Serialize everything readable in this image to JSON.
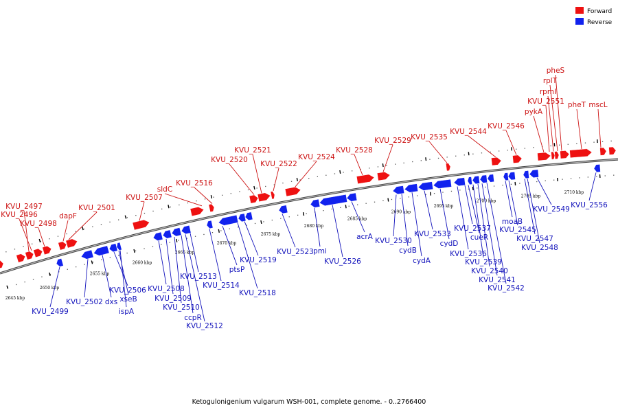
{
  "caption": "Ketogulonigenium vulgarum WSH-001, complete genome. - 0..2766400",
  "legend": {
    "forward": {
      "label": "Forward",
      "color": "#ee1111"
    },
    "reverse": {
      "label": "Reverse",
      "color": "#1122ee"
    }
  },
  "colors": {
    "forward_label": "#cc1111",
    "reverse_label": "#1111bb",
    "backbone": "#777777"
  },
  "kbp_ticks": [
    "2645 kbp",
    "2650 kbp",
    "2655 kbp",
    "2660 kbp",
    "2665 kbp",
    "2670 kbp",
    "2675 kbp",
    "2680 kbp",
    "2685 kbp",
    "2690 kbp",
    "2695 kbp",
    "2700 kbp",
    "2705 kbp",
    "2710 kbp"
  ],
  "forward_labels": [
    "KVU_2497",
    "KVU_2496",
    "KVU_2498",
    "dapF",
    "KVU_2501",
    "KVU_2507",
    "sldC",
    "KVU_2516",
    "KVU_2520",
    "KVU_2521",
    "KVU_2522",
    "KVU_2524",
    "KVU_2528",
    "KVU_2529",
    "KVU_2535",
    "KVU_2544",
    "KVU_2546",
    "pykA",
    "KVU_2551",
    "rpmI",
    "rplT",
    "pheS",
    "pheT",
    "mscL"
  ],
  "reverse_labels": [
    "KVU_2499",
    "KVU_2502",
    "dxs",
    "KVU_2506",
    "xseB",
    "ispA",
    "KVU_2508",
    "KVU_2509",
    "KVU_2510",
    "ccpR",
    "KVU_2512",
    "KVU_2513",
    "KVU_2514",
    "ptsP",
    "KVU_2518",
    "KVU_2519",
    "KVU_2523",
    "pmi",
    "KVU_2526",
    "acrA",
    "KVU_2530",
    "cydB",
    "cydA",
    "KVU_2533",
    "cydD",
    "KVU_2536",
    "KVU_2537",
    "cueR",
    "KVU_2539",
    "KVU_2540",
    "KVU_2541",
    "KVU_2542",
    "moaB",
    "KVU_2545",
    "KVU_2547",
    "KVU_2548",
    "KVU_2549",
    "KVU_2556"
  ]
}
